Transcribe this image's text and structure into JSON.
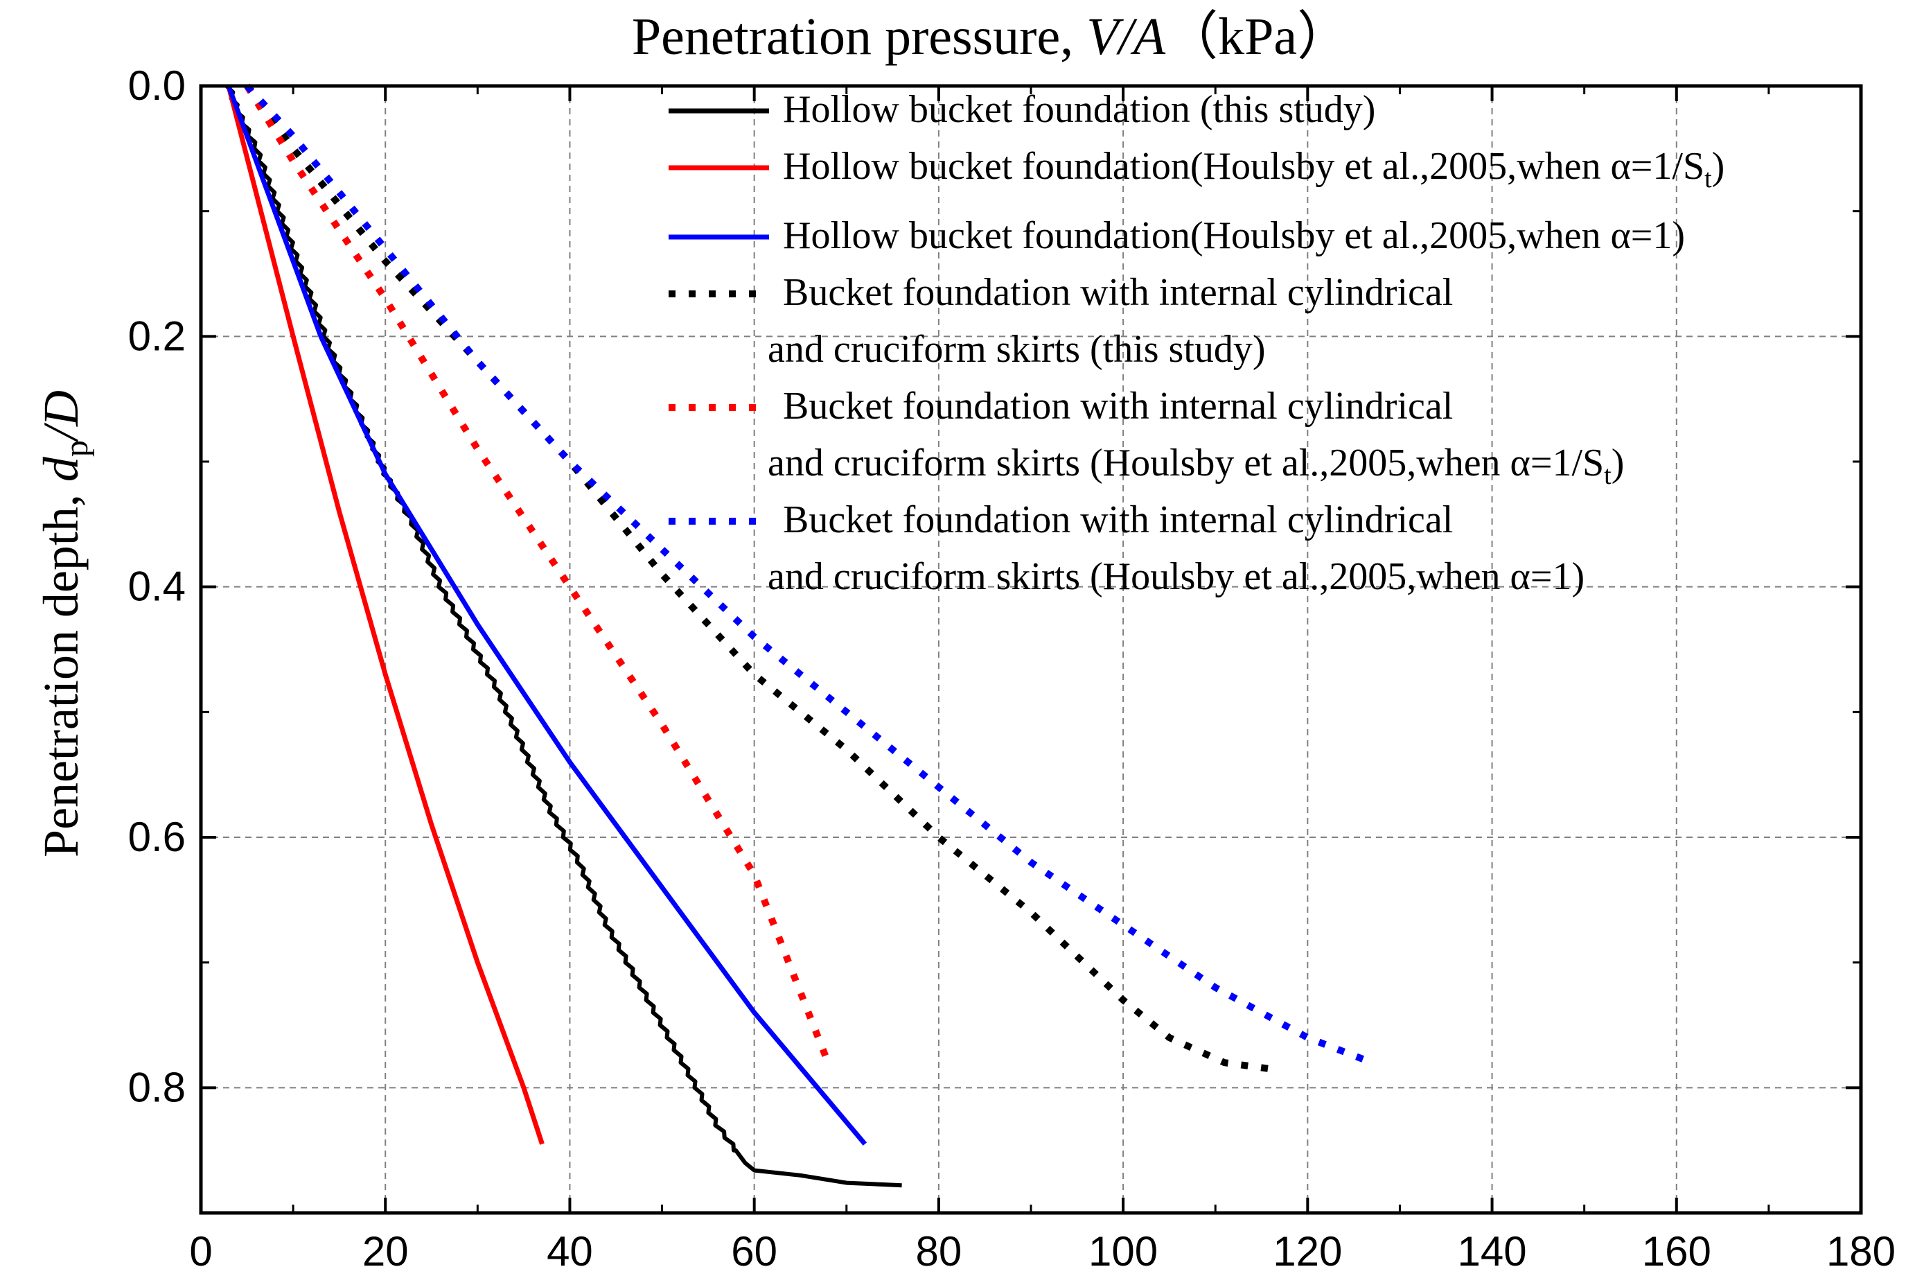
{
  "chart_data": {
    "type": "line",
    "title_prefix": "Penetration pressure, ",
    "title_var": "V/A",
    "title_unit": "（kPa）",
    "ylabel_prefix": "Penetration depth, ",
    "ylabel_var": "d",
    "ylabel_sub": "p",
    "ylabel_suffix": "/D",
    "xlim": [
      0,
      180
    ],
    "ylim": [
      0,
      0.9
    ],
    "x_axis_position": "top (title) / bottom (ticks)",
    "y_inverted": true,
    "grid": true,
    "xticks": [
      "0",
      "20",
      "40",
      "60",
      "80",
      "100",
      "120",
      "140",
      "160",
      "180"
    ],
    "yticks": [
      "0.0",
      "0.2",
      "0.4",
      "0.6",
      "0.8"
    ],
    "legend_position": "top-right",
    "series": [
      {
        "name": "Hollow bucket foundation (this study)",
        "color": "#000000",
        "style": "solid-jagged",
        "x": [
          3,
          4,
          6,
          8,
          10,
          12,
          14,
          17,
          20,
          23,
          26,
          29,
          32,
          35,
          38,
          41,
          44,
          47,
          50,
          53,
          56,
          58,
          59,
          60,
          65,
          70,
          76
        ],
        "y": [
          0,
          0.02,
          0.05,
          0.09,
          0.13,
          0.17,
          0.21,
          0.26,
          0.31,
          0.35,
          0.4,
          0.44,
          0.48,
          0.53,
          0.58,
          0.62,
          0.67,
          0.71,
          0.75,
          0.79,
          0.83,
          0.85,
          0.86,
          0.866,
          0.87,
          0.876,
          0.878
        ]
      },
      {
        "name": "Hollow bucket foundation(Houlsby et al.,2005,when α=1/S",
        "name_sub": "t",
        "name_suffix": ")",
        "color": "#ff0000",
        "style": "solid",
        "x": [
          3,
          10,
          15,
          20,
          25,
          30,
          35,
          37
        ],
        "y": [
          0,
          0.2,
          0.34,
          0.47,
          0.59,
          0.7,
          0.8,
          0.845
        ]
      },
      {
        "name": "Hollow bucket foundation(Houlsby et al.,2005,when α=1)",
        "color": "#0000ff",
        "style": "solid",
        "x": [
          3,
          8,
          13,
          20,
          30,
          40,
          50,
          60,
          72
        ],
        "y": [
          0,
          0.1,
          0.2,
          0.31,
          0.43,
          0.54,
          0.64,
          0.74,
          0.845
        ]
      },
      {
        "name": "Bucket foundation with internal cylindrical",
        "name_line2": "and cruciform skirts (this study)",
        "color": "#000000",
        "style": "dotted",
        "x": [
          5,
          10,
          20,
          30,
          40,
          50,
          60,
          70,
          80,
          90,
          100,
          105,
          111,
          116
        ],
        "y": [
          0,
          0.05,
          0.14,
          0.22,
          0.3,
          0.39,
          0.47,
          0.53,
          0.6,
          0.66,
          0.73,
          0.76,
          0.78,
          0.785
        ]
      },
      {
        "name": "Bucket foundation with internal cylindrical",
        "name_line2": "and cruciform skirts (Houlsby et al.,2005,when α=1/S",
        "name_sub": "t",
        "name_suffix": ")",
        "color": "#ff0000",
        "style": "dotted",
        "x": [
          5,
          10,
          20,
          30,
          40,
          50,
          60,
          68
        ],
        "y": [
          0,
          0.06,
          0.17,
          0.29,
          0.4,
          0.51,
          0.63,
          0.78
        ]
      },
      {
        "name": "Bucket foundation with internal cylindrical",
        "name_line2": "and cruciform skirts (Houlsby et al.,2005,when α=1)",
        "color": "#0000ff",
        "style": "dotted",
        "x": [
          5,
          10,
          20,
          30,
          40,
          50,
          60,
          70,
          80,
          90,
          100,
          110,
          120,
          127
        ],
        "y": [
          0,
          0.04,
          0.13,
          0.22,
          0.3,
          0.37,
          0.44,
          0.5,
          0.56,
          0.62,
          0.67,
          0.72,
          0.76,
          0.78
        ]
      }
    ]
  }
}
